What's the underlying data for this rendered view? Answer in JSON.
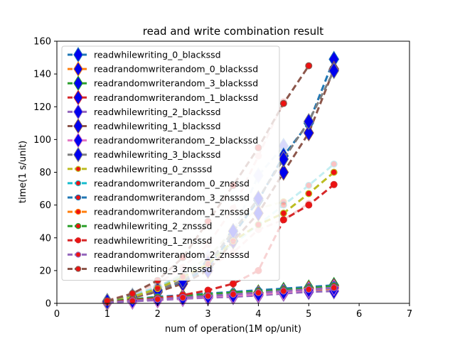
{
  "chart_data": {
    "type": "line",
    "title": "read and write combination result",
    "xlabel": "num of operation(1M op/unit)",
    "ylabel": "time(1 s/unit)",
    "xlim": [
      0,
      7
    ],
    "ylim": [
      0,
      160
    ],
    "xticks": [
      "0",
      "1",
      "2",
      "3",
      "4",
      "5",
      "6",
      "7"
    ],
    "yticks": [
      "0",
      "20",
      "40",
      "60",
      "80",
      "100",
      "120",
      "140",
      "160"
    ],
    "grid": false,
    "legend_position": "upper-left",
    "x": [
      1,
      1.5,
      2,
      2.5,
      3,
      3.5,
      4,
      4.5,
      5,
      5.5
    ],
    "series": [
      {
        "name": "readwhilewriting_0_blackssd",
        "color": "#1f77b4",
        "marker": "diamond",
        "alpha": 1,
        "values": [
          1.2,
          4,
          7,
          13,
          22,
          42,
          63,
          90,
          110,
          149
        ]
      },
      {
        "name": "readrandomwriterandom_0_blackssd",
        "color": "#ff7f0e",
        "marker": "diamond",
        "alpha": 1,
        "values": [
          0.5,
          1.5,
          2.2,
          3.2,
          4.2,
          4.5,
          5.3,
          6.5,
          8,
          9
        ]
      },
      {
        "name": "readrandomwriterandom_3_blackssd",
        "color": "#2ca02c",
        "marker": "diamond",
        "alpha": 1,
        "values": [
          0.8,
          2,
          3,
          4,
          4.8,
          5.5,
          6.5,
          8,
          9.5,
          11
        ]
      },
      {
        "name": "readrandomwriterandom_1_blackssd",
        "color": "#d62728",
        "marker": "diamond",
        "alpha": 1,
        "values": [
          0.6,
          1.8,
          2.6,
          3.4,
          4.4,
          5,
          6,
          7,
          8.8,
          10
        ]
      },
      {
        "name": "readwhilewriting_2_blackssd",
        "color": "#9467bd",
        "marker": "diamond",
        "alpha": 1,
        "values": [
          0.5,
          1.2,
          2,
          2.8,
          3.5,
          4,
          4.8,
          6,
          7,
          7.5
        ]
      },
      {
        "name": "readwhilewriting_1_blackssd",
        "color": "#8c564b",
        "marker": "diamond",
        "alpha": 1,
        "values": [
          1,
          3.5,
          7,
          12,
          20,
          38,
          55,
          80,
          104,
          143
        ]
      },
      {
        "name": "readrandomwriterandom_2_blackssd",
        "color": "#e377c2",
        "marker": "diamond",
        "alpha": 1,
        "values": [
          0.7,
          1.6,
          2.4,
          3.2,
          4.2,
          4.8,
          5.6,
          6.8,
          8.2,
          9.5
        ]
      },
      {
        "name": "readwhilewriting_3_blackssd",
        "color": "#7f7f7f",
        "marker": "diamond",
        "alpha": 1,
        "values": [
          1.1,
          4.2,
          8,
          14,
          24,
          44,
          64,
          88,
          111,
          142
        ]
      },
      {
        "name": "readwhilewriting_0_znsssd",
        "color": "#bcbd22",
        "marker": "circle",
        "alpha": 1,
        "values": [
          1,
          4,
          9,
          16,
          24,
          38,
          48,
          55,
          67,
          80
        ]
      },
      {
        "name": "readrandomwriterandom_0_znsssd",
        "color": "#17becf",
        "marker": "circle",
        "alpha": 0.25,
        "values": [
          1.5,
          5,
          10,
          17,
          26,
          36,
          48,
          60,
          72,
          85
        ]
      },
      {
        "name": "readrandomwriterandom_3_znsssd",
        "color": "#1f77b4",
        "marker": "circle",
        "alpha": 1,
        "values": [
          1,
          2.5,
          4,
          5,
          6,
          7,
          8,
          9,
          10,
          11
        ]
      },
      {
        "name": "readrandomwriterandom_1_znsssd",
        "color": "#ff7f0e",
        "marker": "circle",
        "alpha": 1,
        "values": [
          0.8,
          2,
          3,
          4,
          5,
          6,
          7,
          8,
          9,
          10
        ]
      },
      {
        "name": "readwhilewriting_2_znsssd",
        "color": "#2ca02c",
        "marker": "circle",
        "alpha": 1,
        "values": [
          1,
          2.5,
          3.5,
          4.5,
          5.5,
          6.5,
          7.2,
          8.2,
          9.2,
          10.5
        ]
      },
      {
        "name": "readwhilewriting_1_znsssd",
        "color": "#d62728",
        "marker": "circle",
        "alpha": 1,
        "values": [
          0.6,
          2,
          3,
          5,
          8,
          12,
          20,
          51,
          60,
          72.5
        ]
      },
      {
        "name": "readrandomwriterandom_2_znsssd",
        "color": "#9467bd",
        "marker": "circle",
        "alpha": 1,
        "values": [
          0.5,
          1.5,
          2.5,
          3.5,
          4.5,
          5.5,
          6.5,
          7.5,
          8.5,
          9.5
        ]
      },
      {
        "name": "readwhilewriting_3_znsssd",
        "color": "#8c564b",
        "marker": "circle",
        "alpha": 1,
        "values": [
          1.5,
          6,
          14,
          28,
          50,
          72,
          95,
          122,
          145,
          null
        ]
      }
    ],
    "extra_series": [
      {
        "color": "#d62728",
        "marker": "circle",
        "alpha": 0.2,
        "values": [
          1,
          4,
          8,
          14,
          22,
          31,
          45,
          51,
          61,
          null
        ]
      },
      {
        "color": "#1f77b4",
        "marker": "diamond",
        "alpha": 0.15,
        "values": [
          1.5,
          5,
          10,
          18,
          28,
          44,
          78,
          96,
          null,
          null
        ]
      },
      {
        "color": "#d62728",
        "marker": "circle",
        "alpha": 0.2,
        "values": [
          2,
          6,
          12,
          22,
          36,
          58,
          90,
          123,
          null,
          null
        ]
      },
      {
        "color": "#bcbd22",
        "marker": "circle",
        "alpha": 0.2,
        "values": [
          1.2,
          4,
          9,
          18,
          28,
          45,
          58,
          62,
          null,
          null
        ]
      }
    ]
  }
}
